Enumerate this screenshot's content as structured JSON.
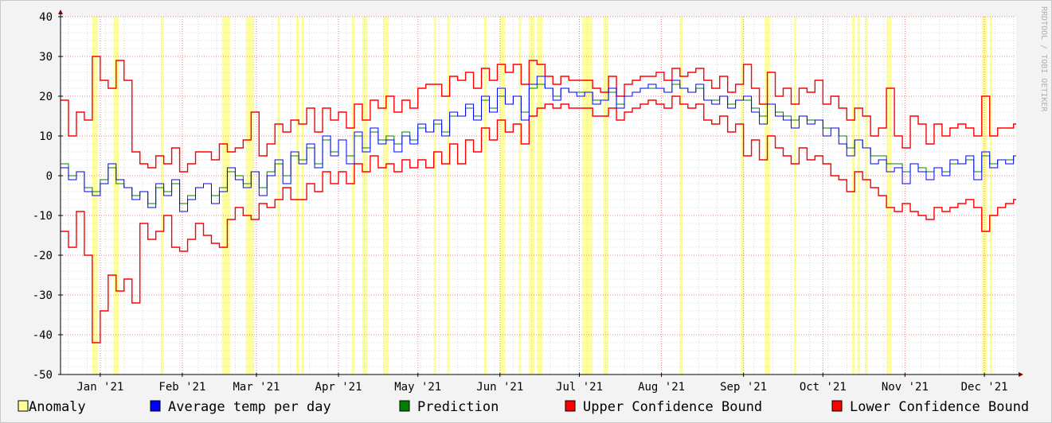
{
  "chart_data": {
    "type": "line",
    "title": "",
    "xlabel": "",
    "ylabel": "",
    "ylim": [
      -50,
      40
    ],
    "y_ticks": [
      -50,
      -40,
      -30,
      -20,
      -10,
      0,
      10,
      20,
      30,
      40
    ],
    "x_range_days": [
      0,
      361
    ],
    "x_ticks": [
      {
        "label": "Jan '21",
        "day": 15
      },
      {
        "label": "Feb '21",
        "day": 46
      },
      {
        "label": "Mar '21",
        "day": 74
      },
      {
        "label": "Apr '21",
        "day": 105
      },
      {
        "label": "May '21",
        "day": 135
      },
      {
        "label": "Jun '21",
        "day": 166
      },
      {
        "label": "Jul '21",
        "day": 196
      },
      {
        "label": "Aug '21",
        "day": 227
      },
      {
        "label": "Sep '21",
        "day": 258
      },
      {
        "label": "Oct '21",
        "day": 288
      },
      {
        "label": "Nov '21",
        "day": 319
      },
      {
        "label": "Dec '21",
        "day": 349
      }
    ],
    "grid": true,
    "legend_position": "bottom",
    "anomaly_days": [
      12,
      13,
      20,
      21,
      38,
      61,
      62,
      63,
      70,
      71,
      72,
      82,
      89,
      91,
      110,
      114,
      115,
      122,
      123,
      141,
      146,
      160,
      166,
      167,
      173,
      177,
      178,
      180,
      181,
      197,
      198,
      199,
      200,
      205,
      206,
      234,
      257,
      266,
      267,
      277,
      299,
      301,
      304,
      312,
      313,
      348,
      349,
      351
    ],
    "series": [
      {
        "name": "Average temp per day",
        "color": "#0000ff",
        "x": [
          0,
          3,
          6,
          9,
          12,
          15,
          18,
          21,
          24,
          27,
          30,
          33,
          36,
          39,
          42,
          45,
          48,
          51,
          54,
          57,
          60,
          63,
          66,
          69,
          72,
          75,
          78,
          81,
          84,
          87,
          90,
          93,
          96,
          99,
          102,
          105,
          108,
          111,
          114,
          117,
          120,
          123,
          126,
          129,
          132,
          135,
          138,
          141,
          144,
          147,
          150,
          153,
          156,
          159,
          162,
          165,
          168,
          171,
          174,
          177,
          180,
          183,
          186,
          189,
          192,
          195,
          198,
          201,
          204,
          207,
          210,
          213,
          216,
          219,
          222,
          225,
          228,
          231,
          234,
          237,
          240,
          243,
          246,
          249,
          252,
          255,
          258,
          261,
          264,
          267,
          270,
          273,
          276,
          279,
          282,
          285,
          288,
          291,
          294,
          297,
          300,
          303,
          306,
          309,
          312,
          315,
          318,
          321,
          324,
          327,
          330,
          333,
          336,
          339,
          342,
          345,
          348,
          351,
          354,
          357,
          360
        ],
        "values": [
          2,
          -1,
          1,
          -4,
          -5,
          -2,
          3,
          -1,
          -3,
          -6,
          -4,
          -8,
          -2,
          -5,
          -1,
          -9,
          -6,
          -3,
          -2,
          -7,
          -4,
          2,
          -1,
          -3,
          1,
          -5,
          0,
          4,
          -2,
          6,
          3,
          8,
          2,
          10,
          5,
          9,
          3,
          11,
          6,
          12,
          8,
          9,
          6,
          10,
          8,
          13,
          11,
          14,
          10,
          16,
          15,
          18,
          14,
          20,
          16,
          22,
          18,
          20,
          14,
          23,
          25,
          22,
          19,
          22,
          21,
          20,
          21,
          18,
          19,
          22,
          17,
          20,
          21,
          22,
          23,
          22,
          21,
          24,
          22,
          21,
          23,
          19,
          18,
          20,
          17,
          19,
          20,
          16,
          13,
          18,
          15,
          14,
          12,
          15,
          13,
          14,
          10,
          12,
          8,
          5,
          9,
          7,
          3,
          4,
          1,
          2,
          -2,
          3,
          1,
          -1,
          2,
          0,
          4,
          3,
          5,
          -1,
          6,
          2,
          4,
          3,
          5
        ]
      },
      {
        "name": "Prediction",
        "color": "#008000",
        "x": [
          0,
          3,
          6,
          9,
          12,
          15,
          18,
          21,
          24,
          27,
          30,
          33,
          36,
          39,
          42,
          45,
          48,
          51,
          54,
          57,
          60,
          63,
          66,
          69,
          72,
          75,
          78,
          81,
          84,
          87,
          90,
          93,
          96,
          99,
          102,
          105,
          108,
          111,
          114,
          117,
          120,
          123,
          126,
          129,
          132,
          135,
          138,
          141,
          144,
          147,
          150,
          153,
          156,
          159,
          162,
          165,
          168,
          171,
          174,
          177,
          180,
          183,
          186,
          189,
          192,
          195,
          198,
          201,
          204,
          207,
          210,
          213,
          216,
          219,
          222,
          225,
          228,
          231,
          234,
          237,
          240,
          243,
          246,
          249,
          252,
          255,
          258,
          261,
          264,
          267,
          270,
          273,
          276,
          279,
          282,
          285,
          288,
          291,
          294,
          297,
          300,
          303,
          306,
          309,
          312,
          315,
          318,
          321,
          324,
          327,
          330,
          333,
          336,
          339,
          342,
          345,
          348,
          351,
          354,
          357,
          360
        ],
        "values": [
          3,
          0,
          1,
          -3,
          -4,
          -1,
          2,
          -2,
          -3,
          -5,
          -4,
          -7,
          -3,
          -4,
          -2,
          -7,
          -5,
          -3,
          -2,
          -5,
          -3,
          1,
          0,
          -2,
          1,
          -3,
          1,
          3,
          0,
          5,
          4,
          7,
          3,
          9,
          6,
          9,
          5,
          10,
          7,
          11,
          9,
          10,
          8,
          11,
          9,
          12,
          11,
          13,
          11,
          15,
          15,
          17,
          15,
          19,
          17,
          20,
          18,
          20,
          16,
          22,
          23,
          22,
          20,
          22,
          21,
          21,
          21,
          19,
          19,
          21,
          18,
          20,
          21,
          22,
          22,
          22,
          21,
          23,
          22,
          21,
          22,
          19,
          19,
          20,
          18,
          19,
          19,
          17,
          15,
          18,
          16,
          15,
          14,
          15,
          14,
          14,
          12,
          12,
          10,
          7,
          9,
          7,
          5,
          5,
          3,
          3,
          1,
          3,
          2,
          1,
          2,
          1,
          3,
          3,
          4,
          1,
          5,
          3,
          4,
          4,
          5
        ]
      },
      {
        "name": "Upper Confidence Bound",
        "color": "#ff0000",
        "x": [
          0,
          3,
          6,
          9,
          12,
          15,
          18,
          21,
          24,
          27,
          30,
          33,
          36,
          39,
          42,
          45,
          48,
          51,
          54,
          57,
          60,
          63,
          66,
          69,
          72,
          75,
          78,
          81,
          84,
          87,
          90,
          93,
          96,
          99,
          102,
          105,
          108,
          111,
          114,
          117,
          120,
          123,
          126,
          129,
          132,
          135,
          138,
          141,
          144,
          147,
          150,
          153,
          156,
          159,
          162,
          165,
          168,
          171,
          174,
          177,
          180,
          183,
          186,
          189,
          192,
          195,
          198,
          201,
          204,
          207,
          210,
          213,
          216,
          219,
          222,
          225,
          228,
          231,
          234,
          237,
          240,
          243,
          246,
          249,
          252,
          255,
          258,
          261,
          264,
          267,
          270,
          273,
          276,
          279,
          282,
          285,
          288,
          291,
          294,
          297,
          300,
          303,
          306,
          309,
          312,
          315,
          318,
          321,
          324,
          327,
          330,
          333,
          336,
          339,
          342,
          345,
          348,
          351,
          354,
          357,
          360
        ],
        "values": [
          19,
          10,
          16,
          14,
          30,
          24,
          22,
          29,
          24,
          6,
          3,
          2,
          5,
          3,
          7,
          1,
          3,
          6,
          6,
          4,
          8,
          6,
          7,
          9,
          16,
          5,
          8,
          13,
          11,
          14,
          13,
          17,
          11,
          17,
          14,
          16,
          12,
          18,
          14,
          19,
          17,
          20,
          16,
          19,
          17,
          22,
          23,
          23,
          20,
          25,
          24,
          26,
          22,
          27,
          24,
          28,
          26,
          28,
          23,
          29,
          28,
          25,
          23,
          25,
          24,
          24,
          24,
          22,
          21,
          25,
          20,
          23,
          24,
          25,
          25,
          26,
          24,
          27,
          25,
          26,
          27,
          24,
          22,
          25,
          21,
          23,
          28,
          22,
          18,
          26,
          20,
          22,
          18,
          22,
          21,
          24,
          18,
          20,
          17,
          14,
          17,
          15,
          10,
          12,
          22,
          10,
          7,
          15,
          13,
          8,
          13,
          10,
          12,
          13,
          12,
          10,
          20,
          10,
          12,
          12,
          13
        ]
      },
      {
        "name": "Lower Confidence Bound",
        "color": "#ff0000",
        "x": [
          0,
          3,
          6,
          9,
          12,
          15,
          18,
          21,
          24,
          27,
          30,
          33,
          36,
          39,
          42,
          45,
          48,
          51,
          54,
          57,
          60,
          63,
          66,
          69,
          72,
          75,
          78,
          81,
          84,
          87,
          90,
          93,
          96,
          99,
          102,
          105,
          108,
          111,
          114,
          117,
          120,
          123,
          126,
          129,
          132,
          135,
          138,
          141,
          144,
          147,
          150,
          153,
          156,
          159,
          162,
          165,
          168,
          171,
          174,
          177,
          180,
          183,
          186,
          189,
          192,
          195,
          198,
          201,
          204,
          207,
          210,
          213,
          216,
          219,
          222,
          225,
          228,
          231,
          234,
          237,
          240,
          243,
          246,
          249,
          252,
          255,
          258,
          261,
          264,
          267,
          270,
          273,
          276,
          279,
          282,
          285,
          288,
          291,
          294,
          297,
          300,
          303,
          306,
          309,
          312,
          315,
          318,
          321,
          324,
          327,
          330,
          333,
          336,
          339,
          342,
          345,
          348,
          351,
          354,
          357,
          360
        ],
        "values": [
          -14,
          -18,
          -9,
          -20,
          -42,
          -34,
          -25,
          -29,
          -26,
          -32,
          -12,
          -16,
          -14,
          -10,
          -18,
          -19,
          -16,
          -12,
          -15,
          -17,
          -18,
          -11,
          -8,
          -10,
          -11,
          -7,
          -8,
          -6,
          -3,
          -6,
          -6,
          -2,
          -4,
          1,
          -2,
          1,
          -2,
          3,
          1,
          5,
          2,
          3,
          1,
          4,
          2,
          4,
          2,
          6,
          3,
          8,
          3,
          9,
          6,
          12,
          9,
          14,
          11,
          13,
          8,
          15,
          17,
          18,
          17,
          18,
          17,
          17,
          17,
          15,
          15,
          17,
          14,
          16,
          17,
          18,
          19,
          18,
          17,
          20,
          18,
          17,
          18,
          14,
          13,
          15,
          11,
          13,
          5,
          9,
          4,
          10,
          7,
          5,
          3,
          7,
          4,
          5,
          3,
          0,
          -1,
          -4,
          1,
          -1,
          -3,
          -5,
          -8,
          -9,
          -7,
          -9,
          -10,
          -11,
          -8,
          -9,
          -8,
          -7,
          -6,
          -8,
          -14,
          -10,
          -8,
          -7,
          -6
        ]
      }
    ]
  },
  "legend": {
    "anomaly": {
      "label": "Anomaly",
      "color": "#ffff99"
    },
    "avg": {
      "label": "Average temp per day",
      "color": "#0000ff"
    },
    "prediction": {
      "label": "Prediction",
      "color": "#008000"
    },
    "upper": {
      "label": "Upper Confidence Bound",
      "color": "#ff0000"
    },
    "lower": {
      "label": "Lower Confidence Bound",
      "color": "#ff0000"
    }
  },
  "watermark": "RRDTOOL / TOBI OETIKER"
}
